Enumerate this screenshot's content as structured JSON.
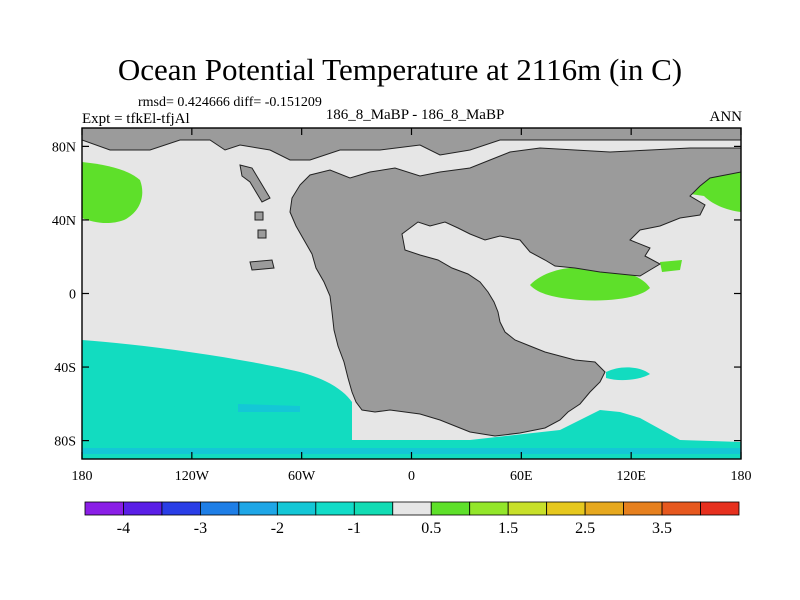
{
  "title": "Ocean Potential Temperature at 2116m (in C)",
  "stats": "rmsd= 0.424666 diff= -0.151209",
  "experiment": "Expt = tfkEl-tfjAl",
  "case_label": "186_8_MaBP - 186_8_MaBP",
  "period": "ANN",
  "colors": {
    "land": "#9b9b9b",
    "neutral": "#e6e6e6",
    "cyan": "#12dcc0",
    "cyan_dark": "#14c7d6",
    "green": "#5ee02a",
    "green_light": "#93e62a"
  },
  "map": {
    "lon_ticks": [
      "180",
      "120W",
      "60W",
      "0",
      "60E",
      "120E",
      "180"
    ],
    "lat_ticks": [
      "80N",
      "40N",
      "0",
      "40S",
      "80S"
    ]
  },
  "colorbar": {
    "colors": [
      "#8a1ee6",
      "#5a1ee6",
      "#2a3ee6",
      "#1e7ee6",
      "#1ea6e6",
      "#14c7d6",
      "#12dcc8",
      "#12dcb4",
      "#e6e6e6",
      "#5ee02a",
      "#93e62a",
      "#c8e02a",
      "#e6c81e",
      "#e6a81e",
      "#e6801e",
      "#e6581e",
      "#e6301e"
    ],
    "labels": [
      "-4",
      "-3",
      "-2",
      "-1",
      "0.5",
      "1.5",
      "2.5",
      "3.5"
    ]
  }
}
